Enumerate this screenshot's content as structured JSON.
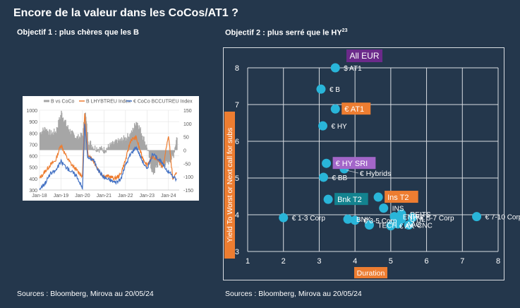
{
  "page": {
    "title": "Encore de la valeur dans les CoCos/AT1 ?",
    "left_subtitle": "Objectif 1 : plus chères que les B",
    "right_subtitle": "Objectif 2 : plus serré que le HY",
    "right_subtitle_sup": "23",
    "left_source": "Sources : Bloomberg, Mirova au 20/05/24",
    "right_source": "Sources : Bloomberg, Mirova au 20/05/24"
  },
  "colors": {
    "background": "#24374c",
    "gray": "#a6a6a6",
    "orange": "#ed7d31",
    "blue": "#4472c4",
    "dot": "#29b5d9",
    "purple": "#6b2a8a",
    "lilac": "#a366c9",
    "teal": "#13838f"
  },
  "chart_data": [
    {
      "type": "line",
      "title": "",
      "legend_position": "top",
      "legend": [
        "B vs CoCo",
        "B LHYBTREU Index",
        "€ CoCo BCCUTREU Index"
      ],
      "x_ticks": [
        "Jan-18",
        "Jan-19",
        "Jan-20",
        "Jan-21",
        "Jan-22",
        "Jan-23",
        "Jan-24"
      ],
      "y_left_ticks": [
        "1000",
        "900",
        "800",
        "700",
        "600",
        "500",
        "400",
        "300"
      ],
      "y_left_range": [
        300,
        1000
      ],
      "y_right_ticks": [
        "150",
        "100",
        "50",
        "0",
        "-50",
        "-100",
        "-150"
      ],
      "y_right_range": [
        -150,
        150
      ],
      "x": [
        2018.0,
        2018.25,
        2018.5,
        2018.75,
        2019.0,
        2019.25,
        2019.5,
        2019.75,
        2020.0,
        2020.1,
        2020.25,
        2020.5,
        2020.75,
        2021.0,
        2021.25,
        2021.5,
        2021.75,
        2022.0,
        2022.25,
        2022.5,
        2022.75,
        2023.0,
        2023.25,
        2023.5,
        2023.75,
        2024.0,
        2024.2,
        2024.38
      ],
      "series": [
        {
          "name": "B vs CoCo",
          "axis": "right",
          "kind": "area",
          "values": [
            65,
            80,
            60,
            70,
            140,
            90,
            60,
            45,
            55,
            150,
            35,
            10,
            5,
            0,
            15,
            25,
            35,
            45,
            60,
            110,
            60,
            5,
            -90,
            -50,
            -60,
            -40,
            -25,
            55
          ]
        },
        {
          "name": "B LHYBTREU Index",
          "axis": "left",
          "kind": "line",
          "values": [
            400,
            460,
            520,
            560,
            700,
            590,
            520,
            470,
            420,
            990,
            620,
            560,
            470,
            420,
            420,
            400,
            430,
            560,
            740,
            760,
            600,
            520,
            590,
            570,
            500,
            780,
            400,
            440
          ]
        },
        {
          "name": "€ CoCo BCCUTREU Index",
          "axis": "left",
          "kind": "line",
          "values": [
            310,
            360,
            440,
            470,
            550,
            500,
            460,
            420,
            310,
            880,
            580,
            570,
            470,
            410,
            390,
            370,
            380,
            520,
            620,
            680,
            570,
            480,
            610,
            580,
            520,
            460,
            420,
            390
          ]
        }
      ]
    },
    {
      "type": "scatter",
      "title": "All EUR",
      "xlabel": "Duration",
      "ylabel": "Yield To Worst or Next call for subs",
      "xlim": [
        1,
        8
      ],
      "ylim": [
        3,
        8
      ],
      "x_ticks": [
        "1",
        "2",
        "3",
        "4",
        "5",
        "6",
        "7",
        "8"
      ],
      "y_ticks": [
        "3",
        "4",
        "5",
        "6",
        "7",
        "8"
      ],
      "grid": true,
      "points": [
        {
          "label": "$ AT1",
          "x": 3.45,
          "y": 8.0,
          "style": "plain"
        },
        {
          "label": "€ B",
          "x": 3.05,
          "y": 7.42,
          "style": "plain"
        },
        {
          "label": "€ AT1",
          "x": 3.45,
          "y": 6.88,
          "style": "orange"
        },
        {
          "label": "€ HY",
          "x": 3.1,
          "y": 6.42,
          "style": "plain"
        },
        {
          "label": "€ HY SRI",
          "x": 3.2,
          "y": 5.4,
          "style": "lilac"
        },
        {
          "label": "€ Hybrids",
          "x": 3.7,
          "y": 5.25,
          "style": "leader"
        },
        {
          "label": "€ BB",
          "x": 3.12,
          "y": 5.02,
          "style": "plain"
        },
        {
          "label": "Bnk T2",
          "x": 3.25,
          "y": 4.42,
          "style": "teal"
        },
        {
          "label": "Ins T2",
          "x": 4.65,
          "y": 4.48,
          "style": "orange"
        },
        {
          "label": "INS",
          "x": 4.8,
          "y": 4.18,
          "style": "plain"
        },
        {
          "label": "REITS",
          "x": 5.3,
          "y": 4.02,
          "style": "plain"
        },
        {
          "label": "€ 1-3 Corp",
          "x": 2.0,
          "y": 3.92,
          "style": "plain"
        },
        {
          "label": "BNK",
          "x": 3.8,
          "y": 3.88,
          "style": "plain"
        },
        {
          "label": "€ 3-5 Corp",
          "x": 4.0,
          "y": 3.85,
          "style": "plain"
        },
        {
          "label": "ENRG",
          "x": 5.1,
          "y": 3.95,
          "style": "plain"
        },
        {
          "label": "UTIL",
          "x": 5.3,
          "y": 3.88,
          "style": "plain"
        },
        {
          "label": "€ 5-7 Corp",
          "x": 5.6,
          "y": 3.92,
          "style": "plain"
        },
        {
          "label": "TECH",
          "x": 4.4,
          "y": 3.72,
          "style": "plain"
        },
        {
          "label": "€ AA",
          "x": 5.0,
          "y": 3.7,
          "style": "plain"
        },
        {
          "label": "AAG",
          "x": 5.2,
          "y": 3.75,
          "style": "plain"
        },
        {
          "label": "CNC",
          "x": 5.5,
          "y": 3.72,
          "style": "plain"
        },
        {
          "label": "€ 7-10 Corp",
          "x": 7.4,
          "y": 3.95,
          "style": "plain"
        }
      ]
    }
  ]
}
